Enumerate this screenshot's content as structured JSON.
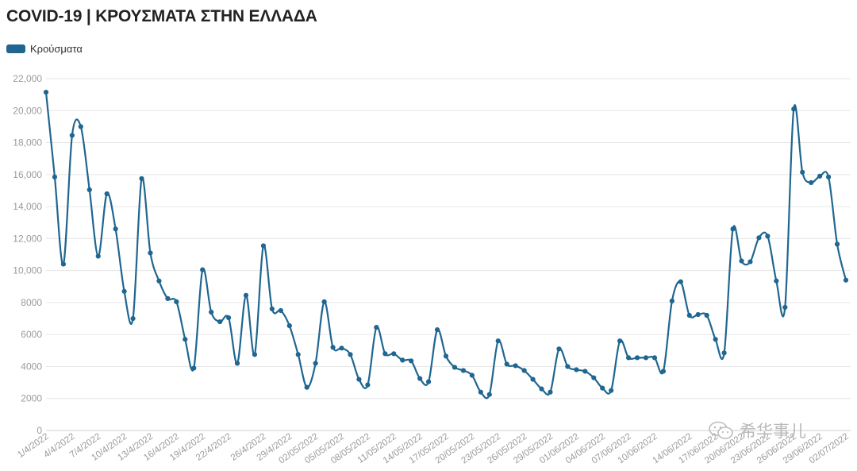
{
  "title": "COVID-19 | ΚΡΟΥΣΜΑΤΑ ΣΤΗΝ ΕΛΛΑΔΑ",
  "watermark": "希华事儿",
  "colors": {
    "line": "#1f6690",
    "grid": "#e6e6e6",
    "tick_text": "#9a9a9a"
  },
  "chart_data": {
    "type": "line",
    "title": "COVID-19 | ΚΡΟΥΣΜΑΤΑ ΣΤΗΝ ΕΛΛΑΔΑ",
    "xlabel": "",
    "ylabel": "",
    "ylim": [
      0,
      22000
    ],
    "yticks": [
      0,
      2000,
      4000,
      6000,
      8000,
      10000,
      12000,
      14000,
      16000,
      18000,
      20000,
      22000
    ],
    "ytick_labels": [
      "0",
      "2000",
      "4000",
      "6000",
      "8000",
      "10,000",
      "12,000",
      "14,000",
      "16,000",
      "18,000",
      "20,000",
      "22,000"
    ],
    "xtick_labels": [
      {
        "index": 0,
        "label": "1/4/2022"
      },
      {
        "index": 3,
        "label": "4/4/2022"
      },
      {
        "index": 6,
        "label": "7/4/2022"
      },
      {
        "index": 9,
        "label": "10/4/2022"
      },
      {
        "index": 12,
        "label": "13/4/2022"
      },
      {
        "index": 15,
        "label": "16/4/2022"
      },
      {
        "index": 18,
        "label": "19/4/2022"
      },
      {
        "index": 21,
        "label": "22/4/2022"
      },
      {
        "index": 25,
        "label": "26/4/2022"
      },
      {
        "index": 28,
        "label": "29/4/2022"
      },
      {
        "index": 31,
        "label": "02/05/2022"
      },
      {
        "index": 34,
        "label": "05/05/2022"
      },
      {
        "index": 37,
        "label": "08/05/2022"
      },
      {
        "index": 40,
        "label": "11/05/2022"
      },
      {
        "index": 43,
        "label": "14/05/2022"
      },
      {
        "index": 46,
        "label": "17/05/2022"
      },
      {
        "index": 49,
        "label": "20/05/2022"
      },
      {
        "index": 52,
        "label": "23/05/2022"
      },
      {
        "index": 55,
        "label": "26/05/2022"
      },
      {
        "index": 58,
        "label": "29/05/2022"
      },
      {
        "index": 61,
        "label": "01/06/2022"
      },
      {
        "index": 64,
        "label": "04/06/2022"
      },
      {
        "index": 67,
        "label": "07/06/2022"
      },
      {
        "index": 70,
        "label": "10/06/2022"
      },
      {
        "index": 74,
        "label": "14/06/2022"
      },
      {
        "index": 77,
        "label": "17/06/2022"
      },
      {
        "index": 80,
        "label": "20/06/2022"
      },
      {
        "index": 83,
        "label": "23/06/2022"
      },
      {
        "index": 86,
        "label": "26/06/2022"
      },
      {
        "index": 89,
        "label": "29/06/2022"
      },
      {
        "index": 92,
        "label": "02/07/2022"
      }
    ],
    "grid": true,
    "legend_position": "top-left",
    "series": [
      {
        "name": "Κρούσματα",
        "values": [
          21150,
          15850,
          10400,
          18450,
          19000,
          15050,
          10900,
          14800,
          12600,
          8700,
          7000,
          15750,
          11100,
          9350,
          8250,
          8050,
          5700,
          3900,
          10050,
          7400,
          6800,
          7050,
          4200,
          8450,
          4750,
          11550,
          7600,
          7500,
          6550,
          4750,
          2700,
          4200,
          8050,
          5200,
          5150,
          4750,
          3200,
          2850,
          6450,
          4800,
          4800,
          4400,
          4350,
          3250,
          3050,
          6300,
          4650,
          3950,
          3750,
          3450,
          2400,
          2250,
          5600,
          4150,
          4050,
          3750,
          3200,
          2600,
          2400,
          5100,
          4000,
          3800,
          3700,
          3300,
          2650,
          2500,
          5600,
          4550,
          4550,
          4550,
          4550,
          3700,
          8100,
          9300,
          7200,
          7250,
          7200,
          5700,
          4850,
          12600,
          10600,
          10550,
          12050,
          12150,
          9350,
          7700,
          20100,
          16150,
          15500,
          15900,
          15850,
          11650,
          9400
        ]
      }
    ]
  },
  "legend": {
    "label": "Κρούσματα"
  }
}
